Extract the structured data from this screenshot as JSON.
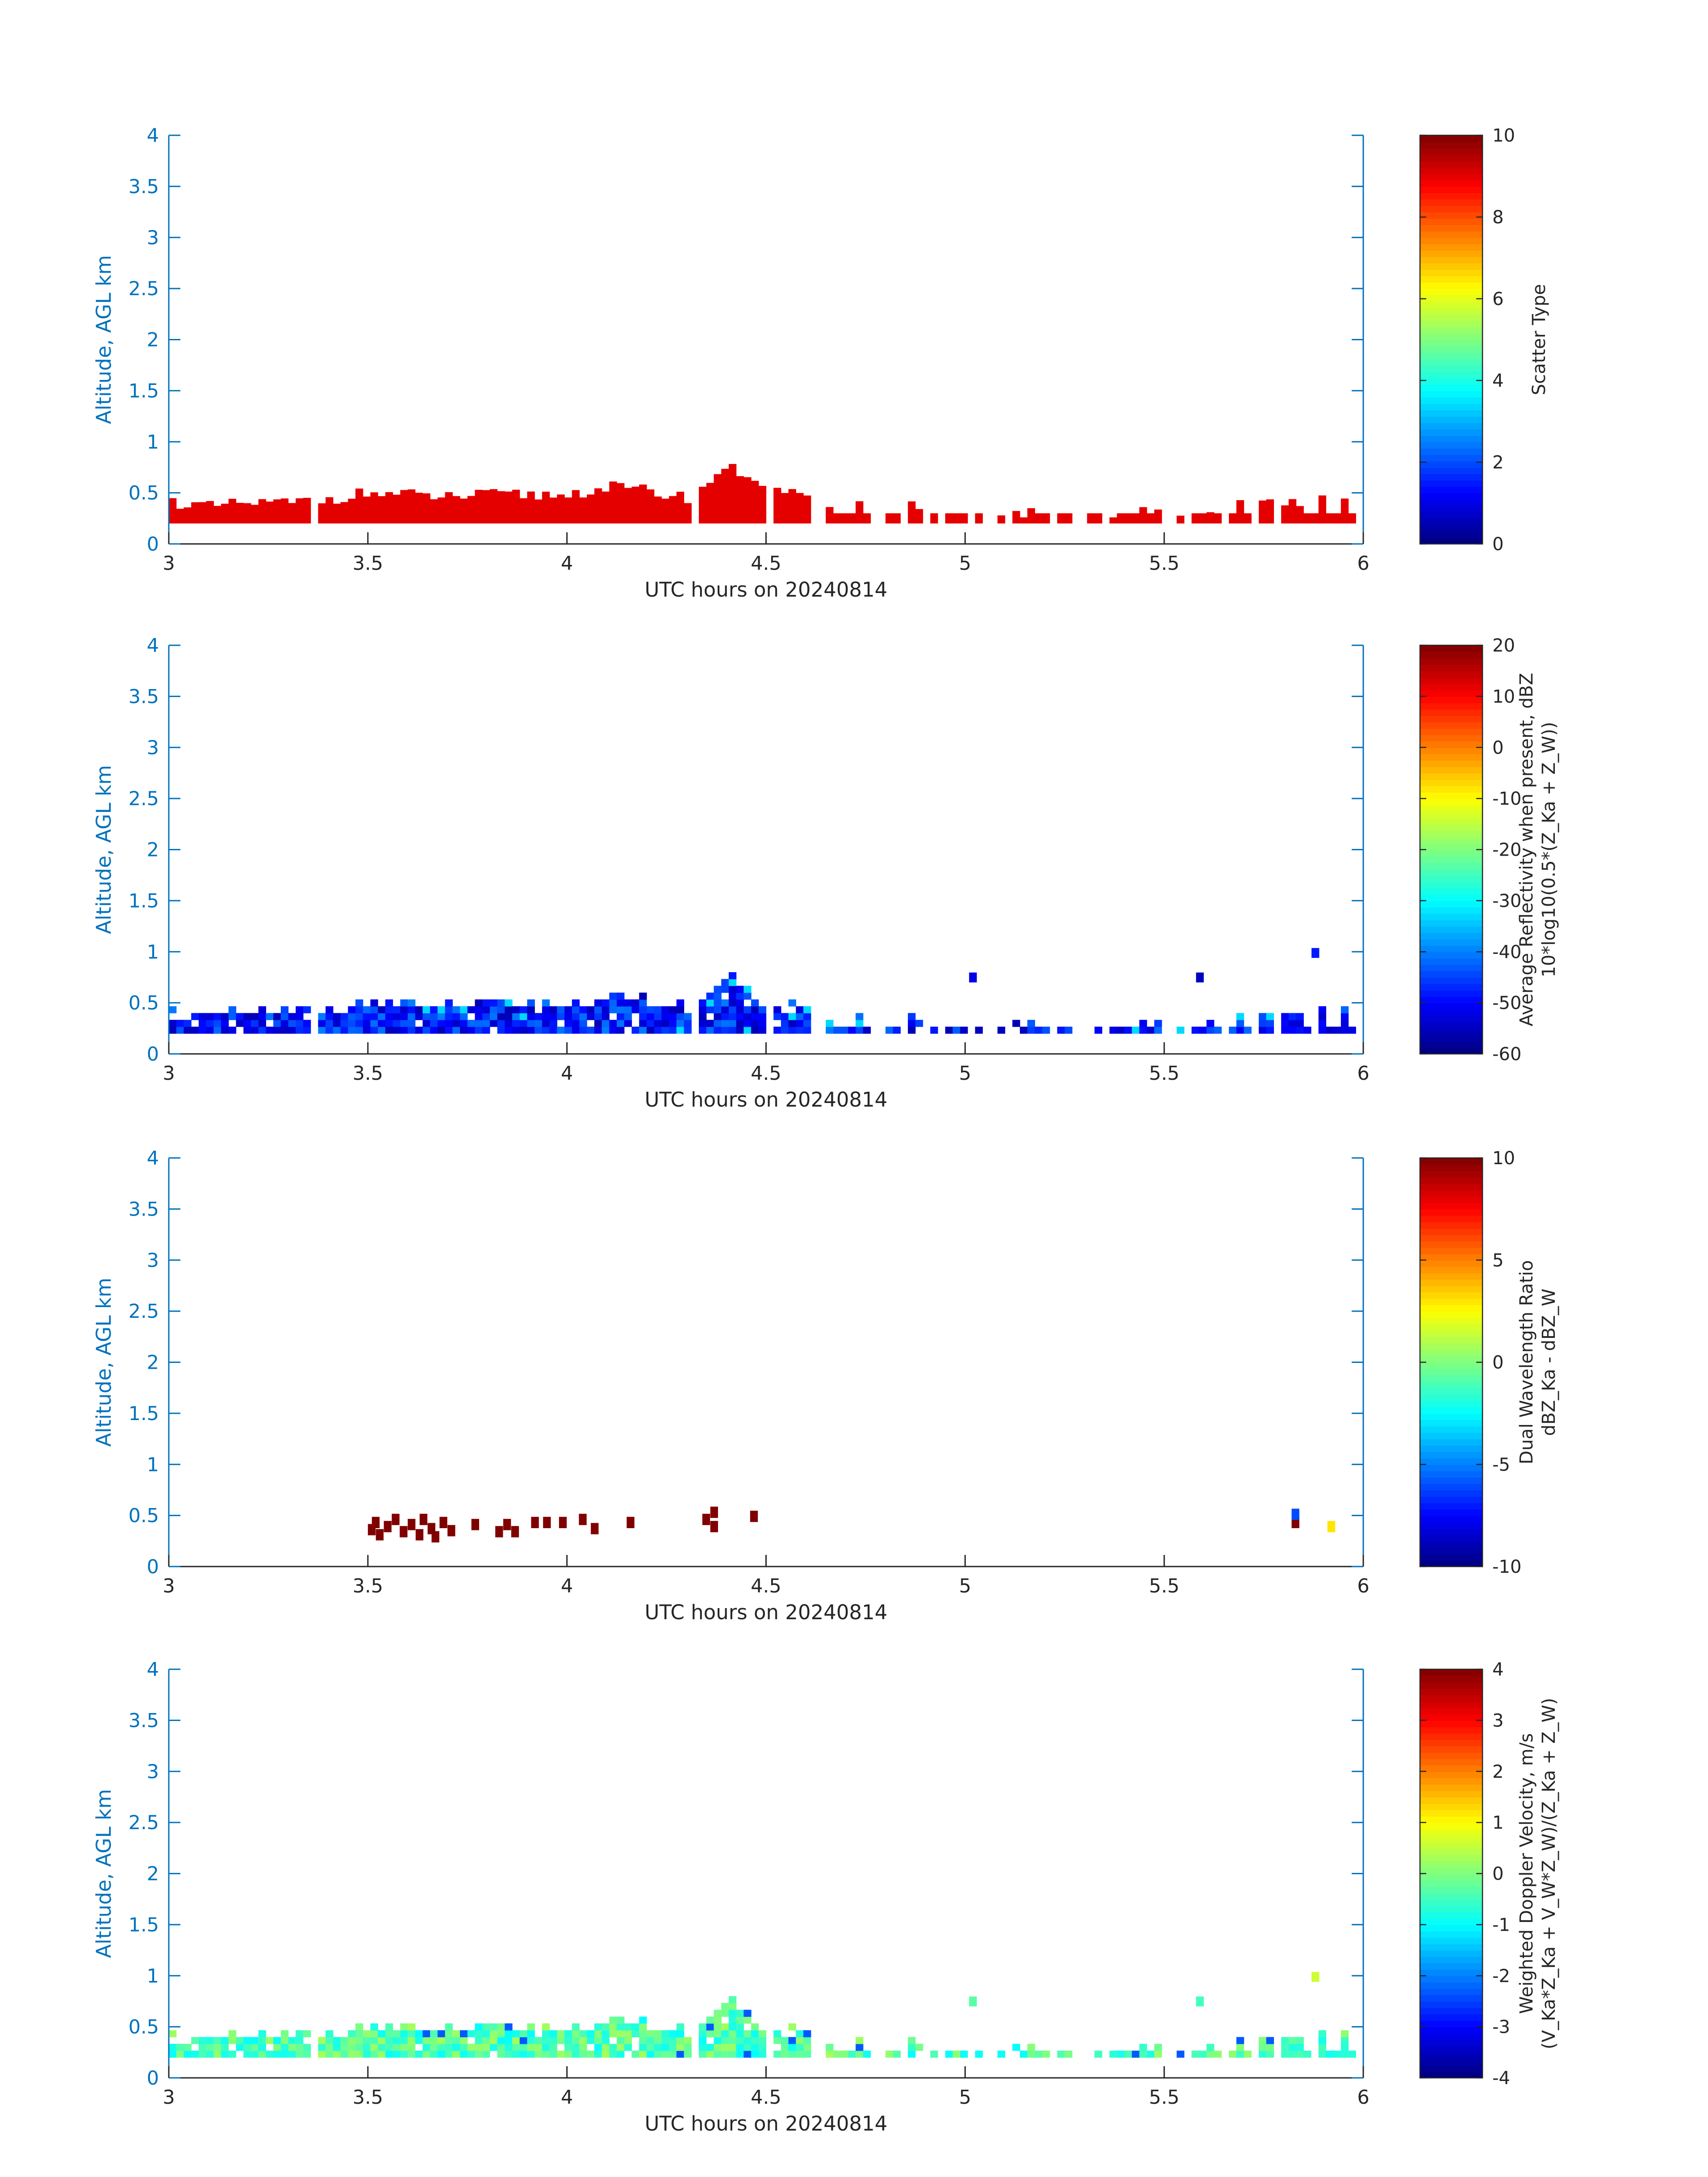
{
  "chart_data": [
    {
      "type": "heatmap",
      "title": "",
      "xlabel": "UTC hours on 20240814",
      "ylabel": "Altitude, AGL km",
      "xlim": [
        3,
        6
      ],
      "ylim": [
        0,
        4
      ],
      "xticks": [
        "3",
        "3.5",
        "4",
        "4.5",
        "5",
        "5.5",
        "6"
      ],
      "yticks": [
        "0",
        "0.5",
        "1",
        "1.5",
        "2",
        "2.5",
        "3",
        "3.5",
        "4"
      ],
      "colorbar": {
        "label_lines": [
          "Scatter Type"
        ],
        "range": [
          0,
          10
        ],
        "ticks": [
          "0",
          "2",
          "4",
          "6",
          "8",
          "10"
        ]
      },
      "fill_value": 9.0,
      "echo_profile": {
        "time_hours": [
          3.0,
          3.1,
          3.2,
          3.3,
          3.4,
          3.5,
          3.6,
          3.7,
          3.8,
          3.9,
          4.0,
          4.1,
          4.2,
          4.3,
          4.4,
          4.5,
          4.6,
          4.7,
          4.8,
          4.9,
          5.0,
          5.1,
          5.2,
          5.3,
          5.4,
          5.5,
          5.6,
          5.7,
          5.8,
          5.9,
          6.0
        ],
        "top_km": [
          0.42,
          0.36,
          0.4,
          0.4,
          0.44,
          0.5,
          0.48,
          0.46,
          0.48,
          0.48,
          0.48,
          0.56,
          0.52,
          0.45,
          0.75,
          0.6,
          0.42,
          0.4,
          0.4,
          0.38,
          0.34,
          0.3,
          0.3,
          0.34,
          0.3,
          0.32,
          0.36,
          0.4,
          0.42,
          0.42,
          0.45
        ],
        "bottom_km": 0.2
      }
    },
    {
      "type": "heatmap",
      "title": "",
      "xlabel": "UTC hours on 20240814",
      "ylabel": "Altitude, AGL km",
      "xlim": [
        3,
        6
      ],
      "ylim": [
        0,
        4
      ],
      "xticks": [
        "3",
        "3.5",
        "4",
        "4.5",
        "5",
        "5.5",
        "6"
      ],
      "yticks": [
        "0",
        "0.5",
        "1",
        "1.5",
        "2",
        "2.5",
        "3",
        "3.5",
        "4"
      ],
      "colorbar": {
        "label_lines": [
          "Average Reflectivity when present, dBZ",
          "10*log10(0.5*(Z_Ka + Z_W))"
        ],
        "range": [
          -60,
          20
        ],
        "ticks": [
          "-60",
          "-50",
          "-40",
          "-30",
          "-20",
          "-10",
          "0",
          "10",
          "20"
        ]
      },
      "typical_value_range": [
        -56,
        -40
      ],
      "isolated_echoes": [
        {
          "time": 5.01,
          "alt": 0.73,
          "value": -52
        },
        {
          "time": 5.58,
          "alt": 0.73,
          "value": -55
        },
        {
          "time": 5.87,
          "alt": 0.97,
          "value": -48
        }
      ]
    },
    {
      "type": "heatmap",
      "title": "",
      "xlabel": "UTC hours on 20240814",
      "ylabel": "Altitude, AGL km",
      "xlim": [
        3,
        6
      ],
      "ylim": [
        0,
        4
      ],
      "xticks": [
        "3",
        "3.5",
        "4",
        "4.5",
        "5",
        "5.5",
        "6"
      ],
      "yticks": [
        "0",
        "0.5",
        "1",
        "1.5",
        "2",
        "2.5",
        "3",
        "3.5",
        "4"
      ],
      "colorbar": {
        "label_lines": [
          "Dual Wavelength Ratio",
          "dBZ_Ka - dBZ_W"
        ],
        "range": [
          -10,
          10
        ],
        "ticks": [
          "-10",
          "-5",
          "0",
          "5",
          "10"
        ]
      },
      "cells": [
        {
          "time": 3.5,
          "alt": 0.35,
          "value": 10
        },
        {
          "time": 3.51,
          "alt": 0.42,
          "value": 10
        },
        {
          "time": 3.52,
          "alt": 0.3,
          "value": 10
        },
        {
          "time": 3.54,
          "alt": 0.38,
          "value": 10
        },
        {
          "time": 3.56,
          "alt": 0.45,
          "value": 10
        },
        {
          "time": 3.58,
          "alt": 0.33,
          "value": 10
        },
        {
          "time": 3.6,
          "alt": 0.4,
          "value": 10
        },
        {
          "time": 3.62,
          "alt": 0.3,
          "value": 10
        },
        {
          "time": 3.63,
          "alt": 0.45,
          "value": 10
        },
        {
          "time": 3.65,
          "alt": 0.36,
          "value": 10
        },
        {
          "time": 3.66,
          "alt": 0.28,
          "value": 10
        },
        {
          "time": 3.68,
          "alt": 0.42,
          "value": 10
        },
        {
          "time": 3.7,
          "alt": 0.34,
          "value": 10
        },
        {
          "time": 3.76,
          "alt": 0.4,
          "value": 10
        },
        {
          "time": 3.82,
          "alt": 0.33,
          "value": 10
        },
        {
          "time": 3.84,
          "alt": 0.4,
          "value": 10
        },
        {
          "time": 3.86,
          "alt": 0.33,
          "value": 10
        },
        {
          "time": 3.91,
          "alt": 0.42,
          "value": 10
        },
        {
          "time": 3.94,
          "alt": 0.42,
          "value": 10
        },
        {
          "time": 3.98,
          "alt": 0.42,
          "value": 10
        },
        {
          "time": 4.03,
          "alt": 0.45,
          "value": 10
        },
        {
          "time": 4.06,
          "alt": 0.36,
          "value": 10
        },
        {
          "time": 4.15,
          "alt": 0.42,
          "value": 10
        },
        {
          "time": 4.34,
          "alt": 0.45,
          "value": 10
        },
        {
          "time": 4.36,
          "alt": 0.38,
          "value": 10
        },
        {
          "time": 4.36,
          "alt": 0.52,
          "value": 10
        },
        {
          "time": 4.46,
          "alt": 0.48,
          "value": 10
        },
        {
          "time": 5.82,
          "alt": 0.42,
          "value": 10
        },
        {
          "time": 5.82,
          "alt": 0.5,
          "value": -6
        },
        {
          "time": 5.91,
          "alt": 0.38,
          "value": 3
        }
      ]
    },
    {
      "type": "heatmap",
      "title": "",
      "xlabel": "UTC hours on 20240814",
      "ylabel": "Altitude, AGL km",
      "xlim": [
        3,
        6
      ],
      "ylim": [
        0,
        4
      ],
      "xticks": [
        "3",
        "3.5",
        "4",
        "4.5",
        "5",
        "5.5",
        "6"
      ],
      "yticks": [
        "0",
        "0.5",
        "1",
        "1.5",
        "2",
        "2.5",
        "3",
        "3.5",
        "4"
      ],
      "colorbar": {
        "label_lines": [
          "Weighted Doppler Velocity, m/s",
          "(V_Ka*Z_Ka + V_W*Z_W)/(Z_Ka + Z_W)"
        ],
        "range": [
          -4,
          4
        ],
        "ticks": [
          "-4",
          "-3",
          "-2",
          "-1",
          "0",
          "1",
          "2",
          "3",
          "4"
        ]
      },
      "typical_value_range": [
        -1.0,
        0.3
      ],
      "isolated_echoes": [
        {
          "time": 5.01,
          "alt": 0.73,
          "value": -0.3
        },
        {
          "time": 5.58,
          "alt": 0.73,
          "value": -0.5
        },
        {
          "time": 5.87,
          "alt": 0.97,
          "value": 0.6
        }
      ]
    }
  ]
}
